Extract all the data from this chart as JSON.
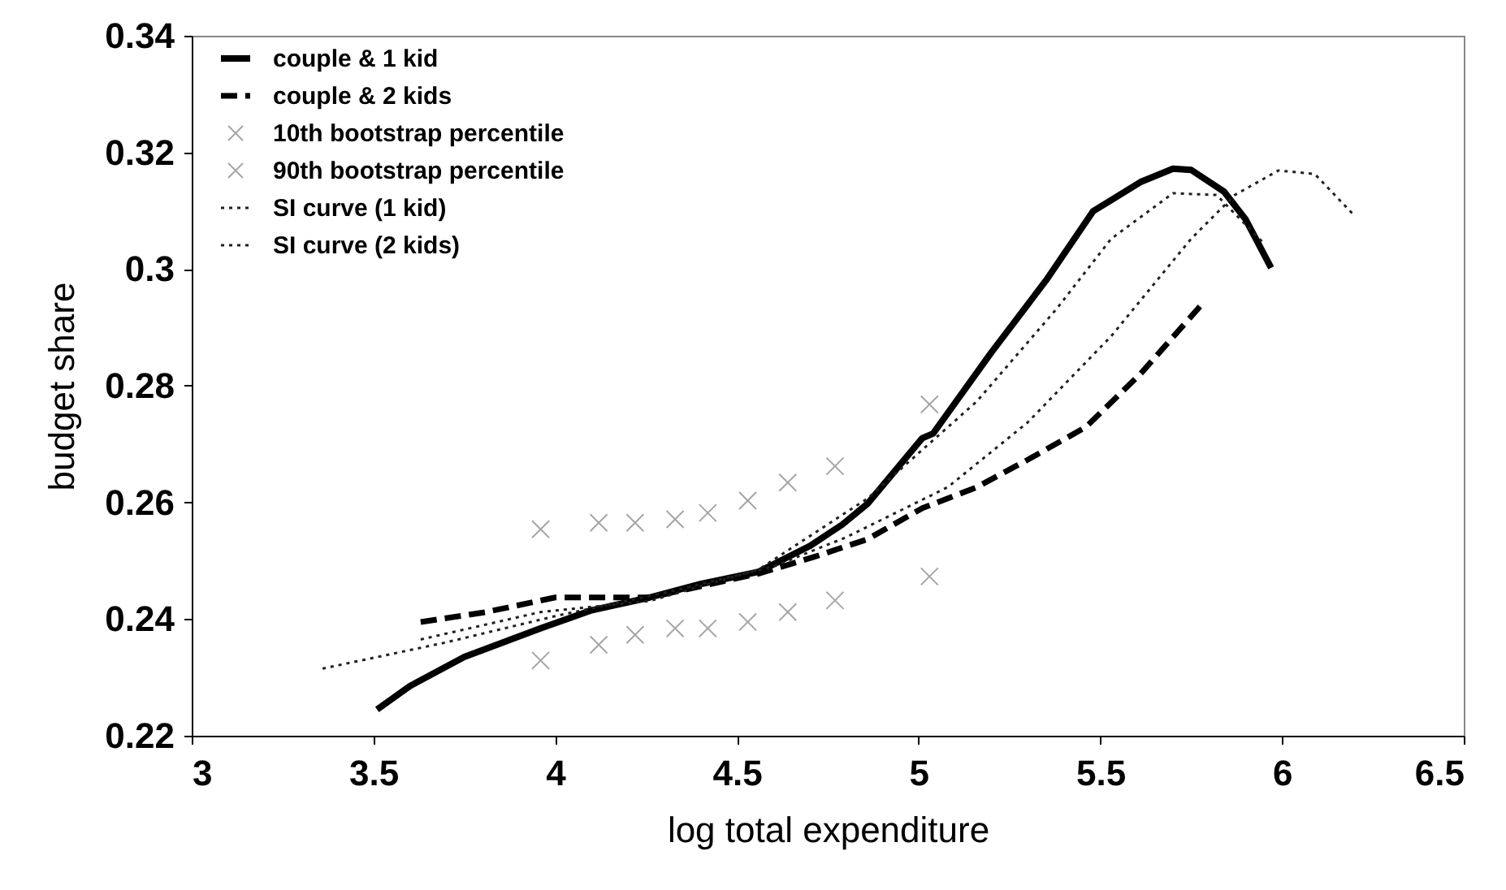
{
  "chart_data": {
    "type": "line",
    "xlabel": "log total expenditure",
    "ylabel": "budget share",
    "xlim": [
      3,
      6.5
    ],
    "ylim": [
      0.22,
      0.34
    ],
    "xticks": [
      3,
      3.5,
      4,
      4.5,
      5,
      5.5,
      6,
      6.5
    ],
    "yticks": [
      0.22,
      0.24,
      0.26,
      0.28,
      0.3,
      0.32,
      0.34
    ],
    "legend": "top left",
    "grid": false,
    "series": [
      {
        "name": "couple & 1 kid",
        "line_style": "solid",
        "color": "#000000",
        "x": [
          3.51,
          3.6,
          3.75,
          3.96,
          4.1,
          4.26,
          4.4,
          4.56,
          4.7,
          4.79,
          4.86,
          5.01,
          5.04,
          5.2,
          5.35,
          5.48,
          5.61,
          5.7,
          5.75,
          5.84,
          5.9,
          5.97
        ],
        "values": [
          0.2245,
          0.2285,
          0.2335,
          0.2384,
          0.2415,
          0.2437,
          0.246,
          0.2481,
          0.2525,
          0.2562,
          0.2598,
          0.271,
          0.2718,
          0.2857,
          0.298,
          0.3099,
          0.3149,
          0.3172,
          0.317,
          0.3133,
          0.3085,
          0.3002
        ]
      },
      {
        "name": "couple & 2 kids",
        "line_style": "dashed",
        "color": "#000000",
        "x": [
          3.63,
          3.81,
          4.0,
          4.26,
          4.56,
          4.71,
          4.86,
          5.01,
          5.16,
          5.3,
          5.46,
          5.61,
          5.78
        ],
        "values": [
          0.2395,
          0.2412,
          0.2437,
          0.2437,
          0.2478,
          0.2506,
          0.2537,
          0.259,
          0.2626,
          0.2673,
          0.2729,
          0.282,
          0.294
        ]
      },
      {
        "name": "10th bootstrap percentile",
        "type": "scatter",
        "marker": "cross",
        "color": "#808080",
        "x": [
          3.96,
          4.12,
          4.22,
          4.33,
          4.42,
          4.53,
          4.64,
          4.77,
          5.03
        ],
        "values": [
          0.2329,
          0.2356,
          0.2373,
          0.2384,
          0.2384,
          0.2395,
          0.2412,
          0.2432,
          0.2473
        ]
      },
      {
        "name": "90th bootstrap percentile",
        "type": "scatter",
        "marker": "cross",
        "color": "#808080",
        "x": [
          3.96,
          4.12,
          4.22,
          4.33,
          4.42,
          4.53,
          4.64,
          4.77,
          5.03
        ],
        "values": [
          0.2554,
          0.2565,
          0.2565,
          0.2571,
          0.2582,
          0.2603,
          0.2634,
          0.2662,
          0.2768
        ]
      },
      {
        "name": "SI curve (1 kid)",
        "line_style": "dotted",
        "color": "#202020",
        "x": [
          3.63,
          3.96,
          4.26,
          4.56,
          4.86,
          5.16,
          5.38,
          5.53,
          5.7,
          5.82,
          5.95
        ],
        "values": [
          0.2365,
          0.2412,
          0.2431,
          0.2485,
          0.2607,
          0.2773,
          0.2932,
          0.3052,
          0.313,
          0.3127,
          0.3044
        ]
      },
      {
        "name": "SI curve (2 kids)",
        "line_style": "dotted",
        "color": "#202020",
        "x": [
          3.36,
          3.7,
          4.0,
          4.3,
          4.6,
          4.8,
          5.08,
          5.3,
          5.53,
          5.75,
          5.87,
          5.99,
          6.09,
          6.2
        ],
        "values": [
          0.2315,
          0.236,
          0.2405,
          0.2445,
          0.249,
          0.254,
          0.2626,
          0.2737,
          0.2885,
          0.3052,
          0.3127,
          0.3169,
          0.3163,
          0.3091
        ]
      }
    ]
  }
}
